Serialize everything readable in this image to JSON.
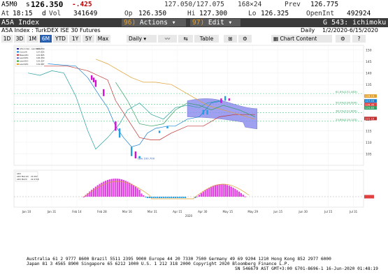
{
  "quote": {
    "symbol": "A5M0",
    "s_flag": "s",
    "last": "126.350",
    "change": "-.425",
    "bid_ask": "127.050/127.075",
    "size": "168×24",
    "prev_label": "Prev",
    "prev": "126.775",
    "at_label": "At",
    "time": "18:15",
    "d_flag": "d",
    "vol_label": "Vol",
    "vol": "341649",
    "op_label": "Op",
    "op": "126.350",
    "hi_label": "Hi",
    "hi": "127.300",
    "lo_label": "Lo",
    "lo": "126.325",
    "oi_label": "OpenInt",
    "oi": "492924"
  },
  "security_bar": {
    "title": "A5A Index",
    "actions_num": "96)",
    "actions_label": "Actions",
    "edit_num": "97)",
    "edit_label": "Edit",
    "g_label": "G 543: ichimoku"
  },
  "description": {
    "name": "A5A Index : TurkDEX ISE 30 Futures",
    "period": "Daily",
    "range": "1/2/2020-6/15/2020"
  },
  "toolbar": {
    "periods": [
      "1D",
      "3D",
      "1M",
      "6M",
      "YTD",
      "1Y",
      "5Y",
      "Max"
    ],
    "active_period": "6M",
    "frequency": "Daily",
    "table": "Table",
    "chart_content": "Chart Content"
  },
  "legend": {
    "items": [
      {
        "name": "A5A Index - Last Price",
        "value": "126.350",
        "color": "#1a1a80"
      },
      {
        "name": "Conv(9)",
        "value": "127.025",
        "color": "#1a7fd0"
      },
      {
        "name": "Base(26)",
        "value": "121.825",
        "color": "#c03030"
      },
      {
        "name": "Lead(26)",
        "value": "126.250",
        "color": "#6a6ac0"
      },
      {
        "name": "Lead(52)",
        "value": "122.237",
        "color": "#30a030"
      },
      {
        "name": "Lead(26)",
        "value": "132.087",
        "color": "#e0a030"
      }
    ],
    "low_label": "Low 100.700",
    "fib_labels": [
      "61.8%(131.083)",
      "50.0%(126.500)",
      "38.2%(122.800)",
      "23.6%(119.143)"
    ]
  },
  "macd": {
    "legend": [
      {
        "name": "ADX",
        "value": ""
      },
      {
        "name": "ADX MA(10)",
        "value": "21.097"
      },
      {
        "name": "ADX MA(5)",
        "value": "22.2718"
      }
    ]
  },
  "x_axis": {
    "ticks": [
      "Jan 10",
      "Jan 31",
      "Feb 14",
      "Feb 28",
      "Mar 16",
      "Mar 31",
      "Apr 15",
      "Apr 30",
      "May 15",
      "May 29",
      "Jun 15",
      "Jun 30",
      "Jul 15",
      "Jul 31"
    ],
    "year": "2020"
  },
  "y_axis": {
    "ticks": [
      "150",
      "145",
      "140",
      "135",
      "130",
      "125",
      "120",
      "115",
      "110",
      "105"
    ]
  },
  "right_flags": {
    "values": [
      "128.15",
      "127.03",
      "126.35",
      "125.83",
      "122.10"
    ]
  },
  "footer": {
    "line1": "Australia 61 2 9777 8600 Brazil 5511 2395 9000 Europe 44 20 7330 7500 Germany 49 69 9204 1210 Hong Kong 852 2977 6000",
    "line2": "Japan 81 3 4565 8900        Singapore 65 6212 1000        U.S. 1 212 318 2000        Copyright 2020 Bloomberg Finance L.P.",
    "line3": "SN 546679 AST  GMT+3:00 G701-8696-1 16-Jun-2020 01:48:19"
  },
  "colors": {
    "cloud": "#8888ee",
    "conv": "#1a7fd0",
    "base": "#c03030",
    "lead_a": "#30a060",
    "lead_b": "#e0a030",
    "macd_pos": "#e040e0",
    "macd_neg": "#30a0e0"
  }
}
